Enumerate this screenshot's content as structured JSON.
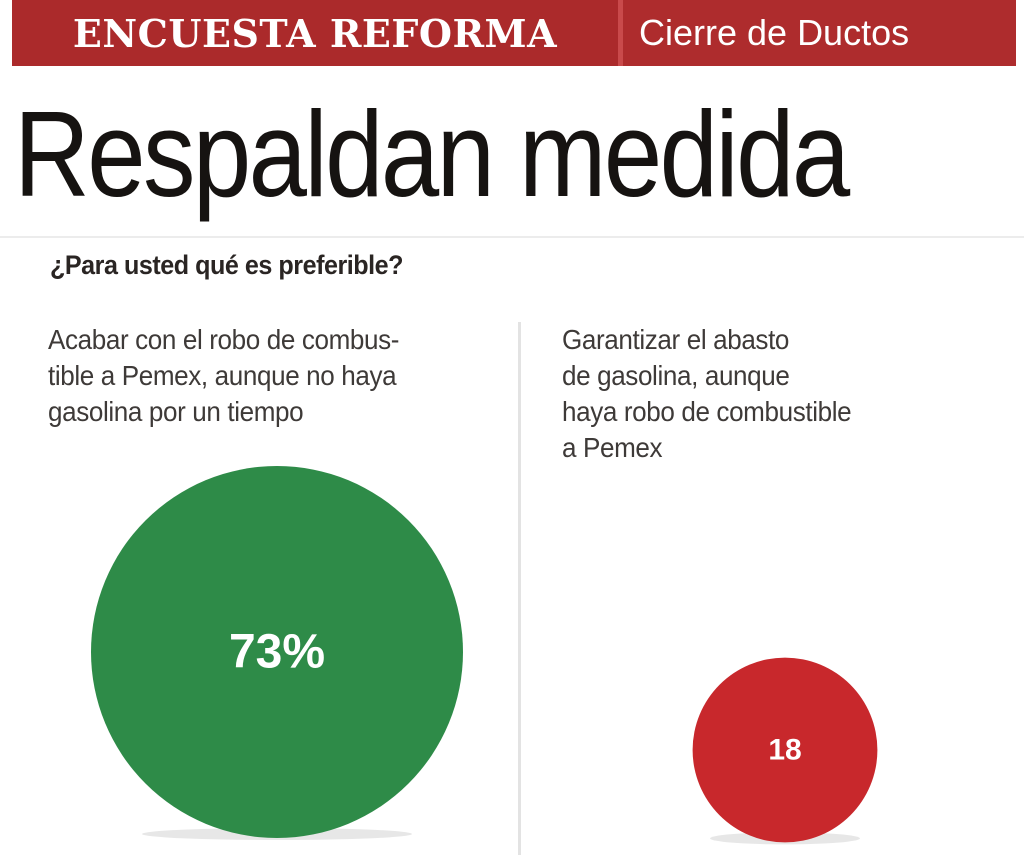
{
  "banner": {
    "section": "ENCUESTA REFORMA",
    "topic": "Cierre de Ductos"
  },
  "headline": "Respaldan medida",
  "question": "¿Para usted qué es preferible?",
  "options": {
    "a": "Acabar con el robo de combus-\ntible a Pemex, aunque no haya\ngasolina por un tiempo",
    "b": "Garantizar el abasto\nde gasolina, aunque\nhaya robo de combustible\na Pemex"
  },
  "colors": {
    "banner_red": "#ab2a2b",
    "green": "#2e8b48",
    "red": "#c8282c"
  },
  "chart_data": {
    "type": "bubble",
    "title": "¿Para usted qué es preferible?",
    "categories": [
      "Acabar con el robo de combustible a Pemex, aunque no haya gasolina por un tiempo",
      "Garantizar el abasto de gasolina, aunque haya robo de combustible a Pemex"
    ],
    "values": [
      73,
      18
    ],
    "labels": [
      "73%",
      "18"
    ],
    "colors": [
      "#2e8b48",
      "#c8282c"
    ]
  }
}
